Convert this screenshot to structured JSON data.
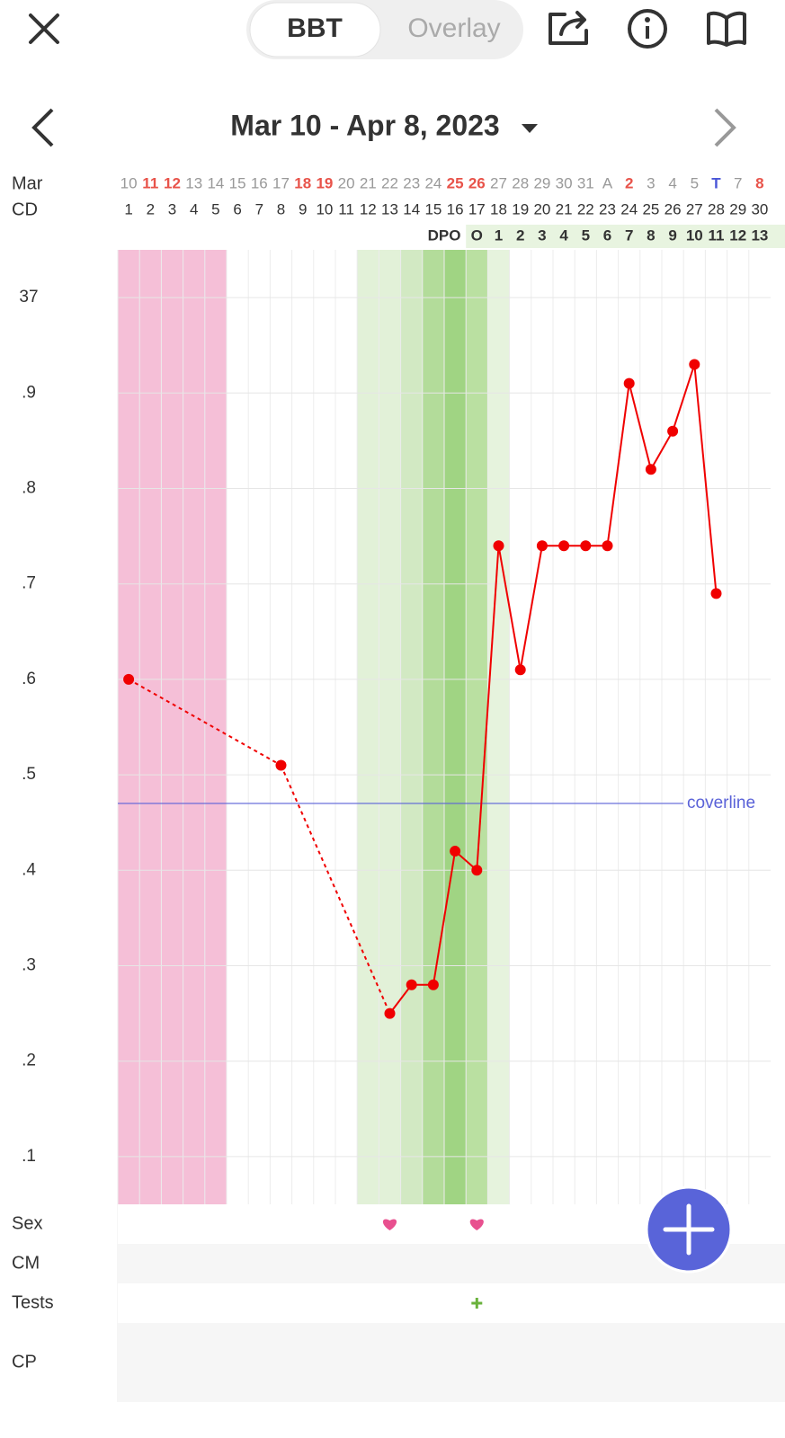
{
  "header": {
    "tabs": [
      "BBT",
      "Overlay"
    ],
    "date_range": "Mar 10 - Apr 8, 2023"
  },
  "chart_data": {
    "type": "line",
    "month_label": "Mar",
    "cd_label": "CD",
    "dpo_label": "DPO",
    "dates": [
      "10",
      "11",
      "12",
      "13",
      "14",
      "15",
      "16",
      "17",
      "18",
      "19",
      "20",
      "21",
      "22",
      "23",
      "24",
      "25",
      "26",
      "27",
      "28",
      "29",
      "30",
      "31",
      "A",
      "2",
      "3",
      "4",
      "5",
      "T",
      "7",
      "8"
    ],
    "date_colors": [
      "#999",
      "#e8534a",
      "#e8534a",
      "#999",
      "#999",
      "#999",
      "#999",
      "#999",
      "#e8534a",
      "#e8534a",
      "#999",
      "#999",
      "#999",
      "#999",
      "#999",
      "#e8534a",
      "#e8534a",
      "#999",
      "#999",
      "#999",
      "#999",
      "#999",
      "#999",
      "#e8534a",
      "#999",
      "#999",
      "#999",
      "#4a56d8",
      "#999",
      "#e8534a"
    ],
    "x": [
      1,
      2,
      3,
      4,
      5,
      6,
      7,
      8,
      9,
      10,
      11,
      12,
      13,
      14,
      15,
      16,
      17,
      18,
      19,
      20,
      21,
      22,
      23,
      24,
      25,
      26,
      27,
      28,
      29,
      30
    ],
    "dpo": [
      null,
      null,
      null,
      null,
      null,
      null,
      null,
      null,
      null,
      null,
      null,
      null,
      null,
      null,
      null,
      null,
      "O",
      1,
      2,
      3,
      4,
      5,
      6,
      7,
      8,
      9,
      10,
      11,
      12,
      13
    ],
    "values": [
      36.6,
      null,
      null,
      null,
      null,
      null,
      null,
      36.51,
      null,
      null,
      null,
      null,
      36.25,
      36.28,
      36.28,
      36.42,
      36.4,
      36.74,
      36.61,
      36.74,
      36.74,
      36.74,
      36.74,
      36.91,
      36.82,
      36.86,
      36.93,
      36.69,
      null,
      null
    ],
    "color": "#f00000",
    "xlim": [
      0.5,
      30.5
    ],
    "ylim": [
      36.05,
      37.05
    ],
    "yticks": [
      37,
      {
        "value": 36.9,
        "label": ".9"
      },
      {
        "value": 36.8,
        "label": ".8"
      },
      {
        "value": 36.7,
        "label": ".7"
      },
      {
        "value": 36.6,
        "label": ".6"
      },
      {
        "value": 36.5,
        "label": ".5"
      },
      {
        "value": 36.4,
        "label": ".4"
      },
      {
        "value": 36.3,
        "label": ".3"
      },
      {
        "value": 36.2,
        "label": ".2"
      },
      {
        "value": 36.1,
        "label": ".1"
      }
    ],
    "grid": true,
    "coverline": {
      "value": 36.47,
      "label": "coverline",
      "color": "#5a62d8"
    },
    "bands": [
      {
        "from": 1,
        "to": 5,
        "color": "#f5bfd7"
      },
      {
        "from": 12,
        "to": 13,
        "color": "#e2f1d8"
      },
      {
        "from": 14,
        "to": 14,
        "color": "#d2e9c3"
      },
      {
        "from": 15,
        "to": 15,
        "color": "#b3dc9a"
      },
      {
        "from": 16,
        "to": 16,
        "color": "#a0d483"
      },
      {
        "from": 17,
        "to": 17,
        "color": "#bae0a1"
      },
      {
        "from": 18,
        "to": 18,
        "color": "#e6f3dd"
      }
    ]
  },
  "rows": [
    {
      "label": "Sex",
      "days": [
        13,
        17
      ],
      "symbol": "heart",
      "color": "#e8508f"
    },
    {
      "label": "CM"
    },
    {
      "label": "Tests",
      "days": [
        17
      ],
      "symbol": "plus",
      "color": "#6ab23c"
    },
    {
      "label": "CP"
    }
  ]
}
